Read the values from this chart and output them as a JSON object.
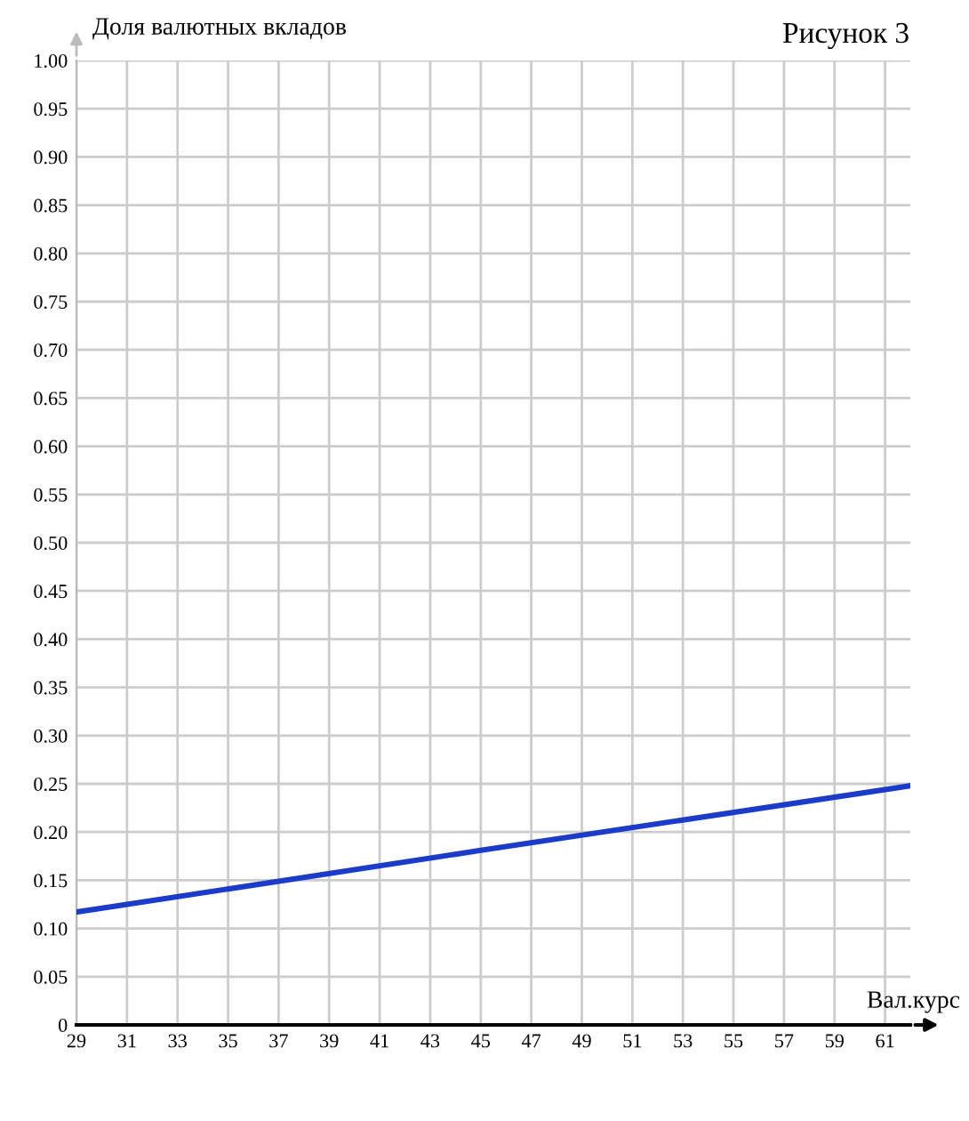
{
  "chart_data": {
    "type": "line",
    "title": "Рисунок 3",
    "ylabel": "Доля валютных вкладов",
    "xlabel": "Вал.курс",
    "x": [
      29,
      45,
      62
    ],
    "series": [
      {
        "color": "#1a3cc8",
        "values": [
          0.117,
          0.181,
          0.248
        ]
      }
    ],
    "xlim": [
      29,
      62
    ],
    "ylim": [
      0,
      1
    ],
    "xticks": [
      29,
      31,
      33,
      35,
      37,
      39,
      41,
      43,
      45,
      47,
      49,
      51,
      53,
      55,
      57,
      59,
      61
    ],
    "yticks": [
      0,
      {
        "value": 0.05,
        "label": "0.05"
      },
      {
        "value": 0.1,
        "label": "0.10"
      },
      {
        "value": 0.15,
        "label": "0.15"
      },
      {
        "value": 0.2,
        "label": "0.20"
      },
      {
        "value": 0.25,
        "label": "0.25"
      },
      {
        "value": 0.3,
        "label": "0.30"
      },
      {
        "value": 0.35,
        "label": "0.35"
      },
      {
        "value": 0.4,
        "label": "0.40"
      },
      {
        "value": 0.45,
        "label": "0.45"
      },
      {
        "value": 0.5,
        "label": "0.50"
      },
      {
        "value": 0.55,
        "label": "0.55"
      },
      {
        "value": 0.6,
        "label": "0.60"
      },
      {
        "value": 0.65,
        "label": "0.65"
      },
      {
        "value": 0.7,
        "label": "0.70"
      },
      {
        "value": 0.75,
        "label": "0.75"
      },
      {
        "value": 0.8,
        "label": "0.80"
      },
      {
        "value": 0.85,
        "label": "0.85"
      },
      {
        "value": 0.9,
        "label": "0.90"
      },
      {
        "value": 0.95,
        "label": "0.95"
      },
      {
        "value": 1,
        "label": "1.00"
      }
    ],
    "grid": true,
    "legend": false,
    "marker": "none",
    "line_style": "solid"
  }
}
